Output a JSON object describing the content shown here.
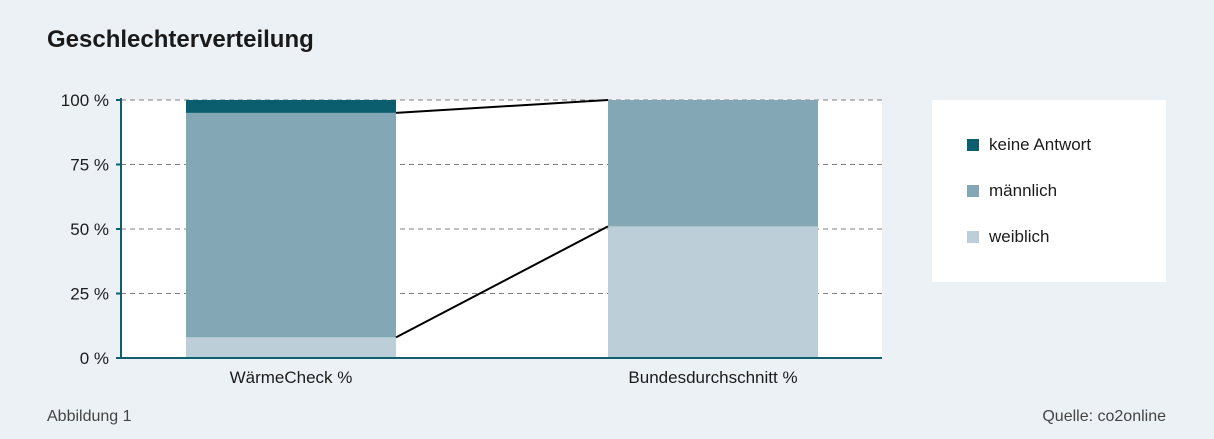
{
  "title": "Geschlechterverteilung",
  "colors": {
    "keine_antwort": "#0b5e6e",
    "maennlich": "#84a7b6",
    "weiblich": "#bccfd9",
    "axis": "#0f5f6e",
    "grid": "#808080",
    "plot_background": "#ffffff",
    "page_background": "#ecf1f5",
    "connector": "#000000"
  },
  "chart_data": {
    "type": "bar",
    "stacked": true,
    "categories": [
      "WärmeCheck %",
      "Bundesdurchschnitt %"
    ],
    "series": [
      {
        "name": "weiblich",
        "values": [
          8,
          51
        ]
      },
      {
        "name": "männlich",
        "values": [
          87,
          49
        ]
      },
      {
        "name": "keine Antwort",
        "values": [
          5,
          0
        ]
      }
    ],
    "yticks": [
      "0 %",
      "25 %",
      "50 %",
      "75 %",
      "100 %"
    ],
    "ylim": [
      0,
      100
    ],
    "grid": true,
    "legend_position": "right"
  },
  "legend": [
    {
      "label": "keine Antwort",
      "color": "#0b5e6e"
    },
    {
      "label": "männlich",
      "color": "#84a7b6"
    },
    {
      "label": "weiblich",
      "color": "#bccfd9"
    }
  ],
  "footer": {
    "left": "Abbildung 1",
    "right": "Quelle: co2online"
  }
}
